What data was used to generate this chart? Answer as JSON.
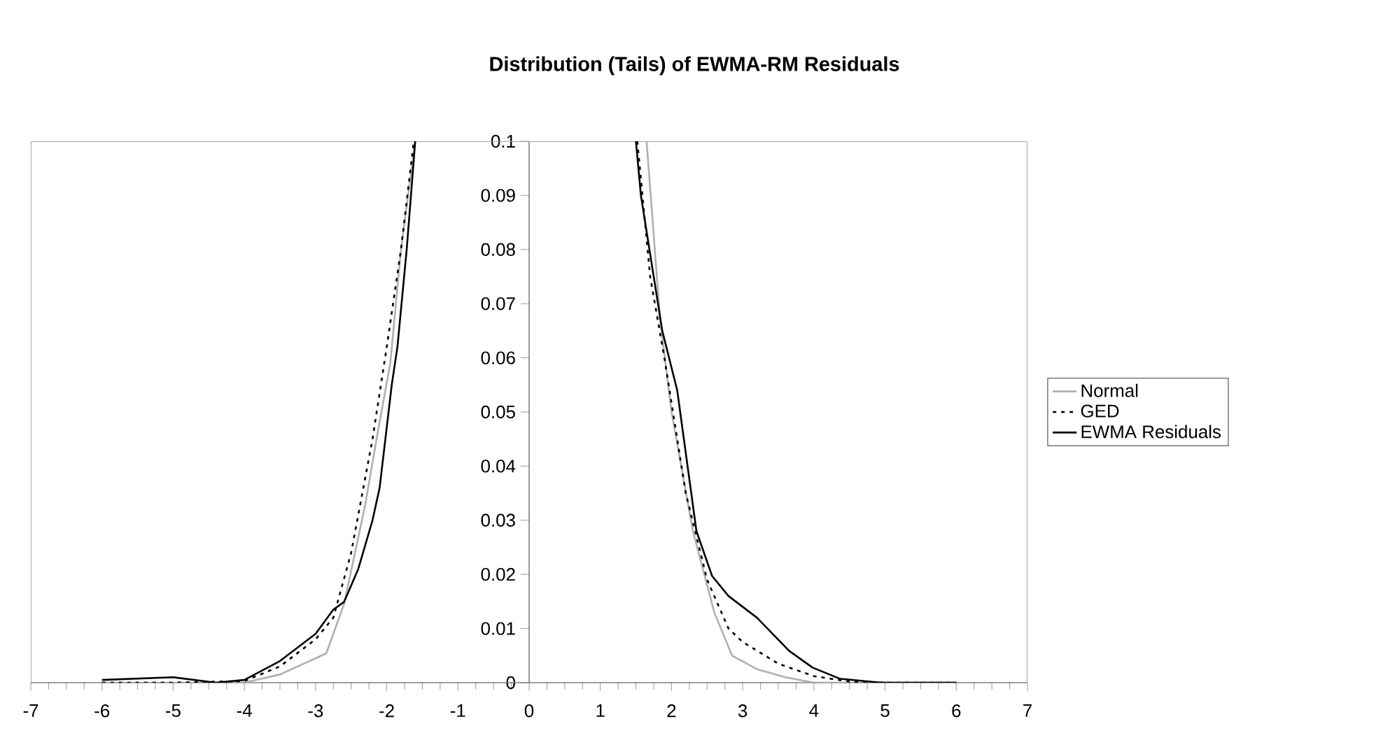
{
  "chart_data": {
    "type": "line",
    "title": "Distribution (Tails) of EWMA-RM Residuals",
    "xlim": [
      -7,
      7
    ],
    "ylim": [
      0,
      0.1
    ],
    "xticks": [
      -7,
      -6,
      -5,
      -4,
      -3,
      -2,
      -1,
      0,
      1,
      2,
      3,
      4,
      5,
      6,
      7
    ],
    "yticks": [
      0,
      0.01,
      0.02,
      0.03,
      0.04,
      0.05,
      0.06,
      0.07,
      0.08,
      0.09,
      0.1
    ],
    "legend": "right",
    "series": [
      {
        "name": "Normal",
        "color": "#b0b0b0",
        "line_style": "solid",
        "x": [
          -6,
          -5,
          -4,
          -3.5,
          -2.85,
          -2.6,
          -2.3,
          -2.13,
          -1.95,
          -1.8,
          -1.6,
          0,
          1.65,
          1.84,
          2.0,
          2.3,
          2.6,
          2.85,
          3.2,
          3.6,
          4.0,
          5,
          6
        ],
        "values": [
          0,
          0,
          0,
          0.0015,
          0.0054,
          0.0145,
          0.033,
          0.046,
          0.059,
          0.08,
          0.1,
          null,
          0.1,
          0.067,
          0.05,
          0.028,
          0.013,
          0.005,
          0.0025,
          0.001,
          0,
          0,
          0
        ]
      },
      {
        "name": "GED",
        "color": "#000000",
        "line_style": "dotted",
        "x": [
          -6,
          -5,
          -4,
          -3.5,
          -3,
          -2.75,
          -2.5,
          -2.2,
          -2,
          -1.8,
          -1.62,
          0,
          1.52,
          1.7,
          1.9,
          2.2,
          2.5,
          2.8,
          3.0,
          3.5,
          4,
          4.5,
          5,
          6
        ],
        "values": [
          0,
          0,
          0.0003,
          0.003,
          0.008,
          0.012,
          0.024,
          0.045,
          0.062,
          0.08,
          0.1,
          null,
          0.1,
          0.075,
          0.06,
          0.035,
          0.019,
          0.01,
          0.0075,
          0.0035,
          0.0012,
          0.0002,
          0,
          0
        ]
      },
      {
        "name": "EWMA Residuals",
        "color": "#000000",
        "line_style": "solid",
        "x": [
          -6,
          -5,
          -4.4,
          -4,
          -3.5,
          -3,
          -2.75,
          -2.6,
          -2.4,
          -2.2,
          -2.1,
          -1.93,
          -1.85,
          -1.72,
          -1.6,
          0,
          1.5,
          1.57,
          1.75,
          1.87,
          2.08,
          2.35,
          2.57,
          2.8,
          3.2,
          3.65,
          3.98,
          4.37,
          4.95,
          6
        ],
        "values": [
          0.0005,
          0.001,
          0,
          0.0005,
          0.004,
          0.009,
          0.0135,
          0.0149,
          0.021,
          0.03,
          0.036,
          0.055,
          0.062,
          0.08,
          0.1,
          null,
          0.1,
          0.09,
          0.075,
          0.065,
          0.054,
          0.028,
          0.0197,
          0.016,
          0.012,
          0.0059,
          0.0028,
          0.0007,
          0,
          0
        ]
      }
    ]
  }
}
